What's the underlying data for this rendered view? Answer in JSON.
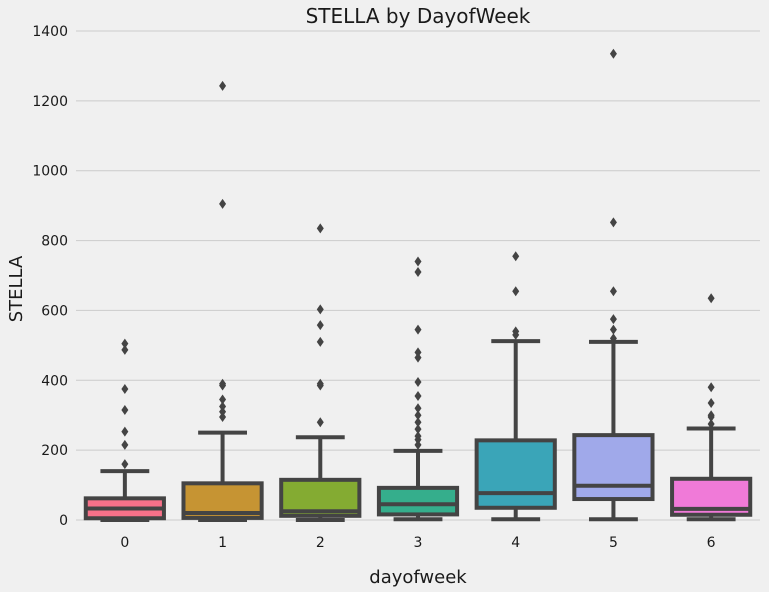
{
  "chart_data": {
    "type": "box",
    "title": "STELLA by DayofWeek",
    "xlabel": "dayofweek",
    "ylabel": "STELLA",
    "ylim": [
      0,
      1400
    ],
    "y_ticks": [
      0,
      200,
      400,
      600,
      800,
      1000,
      1200,
      1400
    ],
    "grid": true,
    "categories": [
      "0",
      "1",
      "2",
      "3",
      "4",
      "5",
      "6"
    ],
    "boxes": [
      {
        "category": "0",
        "color": "#f77189",
        "whisker_low": 0,
        "q1": 5,
        "median": 33,
        "q3": 62,
        "whisker_high": 140,
        "outliers": [
          160,
          215,
          253,
          315,
          375,
          487,
          505
        ]
      },
      {
        "category": "1",
        "color": "#c69433",
        "whisker_low": 0,
        "q1": 6,
        "median": 20,
        "q3": 105,
        "whisker_high": 250,
        "outliers": [
          295,
          310,
          325,
          345,
          385,
          390,
          905,
          1243
        ]
      },
      {
        "category": "2",
        "color": "#84ab32",
        "whisker_low": 0,
        "q1": 12,
        "median": 25,
        "q3": 115,
        "whisker_high": 237,
        "outliers": [
          280,
          385,
          390,
          510,
          558,
          603,
          835
        ]
      },
      {
        "category": "3",
        "color": "#35ae8c",
        "whisker_low": 2,
        "q1": 16,
        "median": 45,
        "q3": 92,
        "whisker_high": 198,
        "outliers": [
          215,
          230,
          240,
          260,
          280,
          300,
          320,
          355,
          395,
          465,
          480,
          545,
          710,
          740
        ]
      },
      {
        "category": "4",
        "color": "#3aa5b8",
        "whisker_low": 2,
        "q1": 35,
        "median": 77,
        "q3": 228,
        "whisker_high": 512,
        "outliers": [
          530,
          540,
          655,
          755
        ]
      },
      {
        "category": "5",
        "color": "#a0a9ea",
        "whisker_low": 2,
        "q1": 60,
        "median": 98,
        "q3": 243,
        "whisker_high": 510,
        "outliers": [
          520,
          545,
          575,
          655,
          852,
          1335
        ]
      },
      {
        "category": "6",
        "color": "#f07ad8",
        "whisker_low": 2,
        "q1": 15,
        "median": 32,
        "q3": 118,
        "whisker_high": 262,
        "outliers": [
          275,
          295,
          300,
          335,
          380,
          635
        ]
      }
    ]
  }
}
